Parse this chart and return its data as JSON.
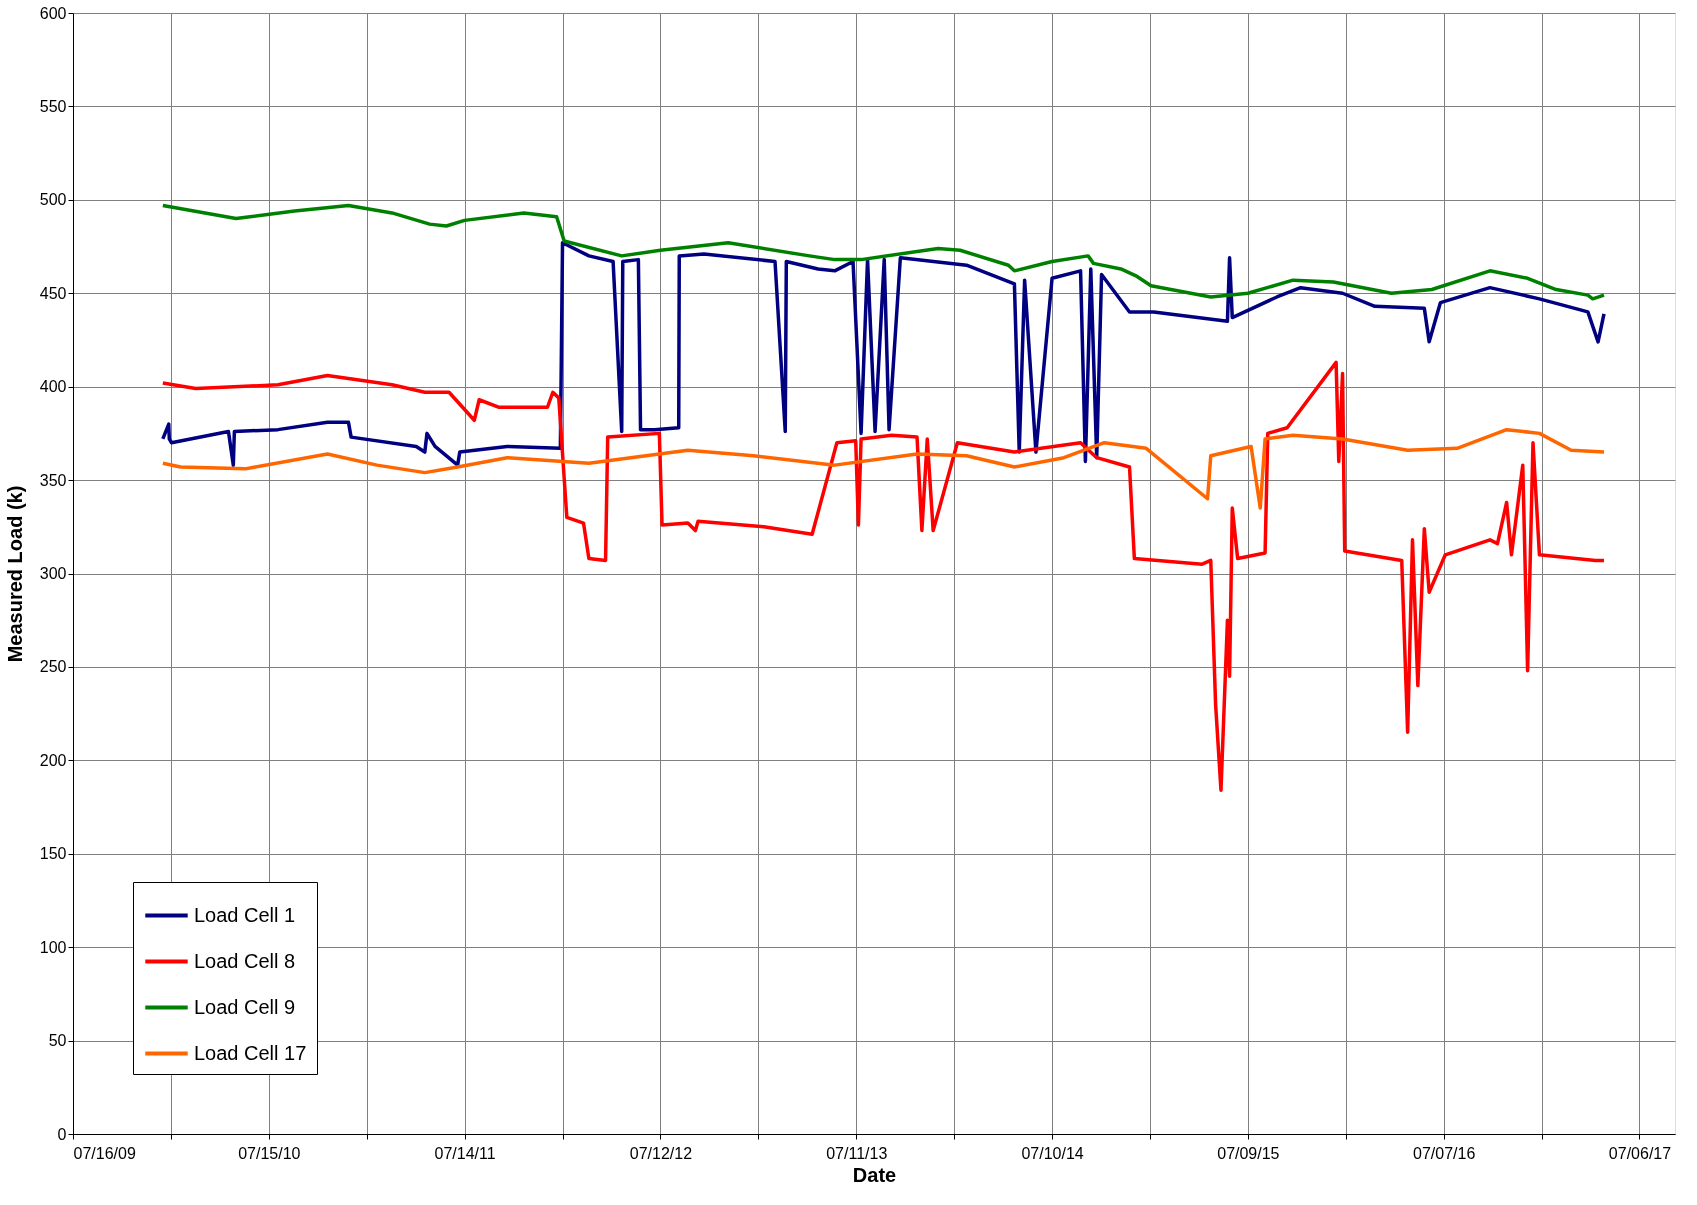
{
  "chart_data": {
    "type": "line",
    "xlabel": "Date",
    "ylabel": "Measured Load (k)",
    "ylim": [
      0,
      600
    ],
    "yticks": [
      0,
      50,
      100,
      150,
      200,
      250,
      300,
      350,
      400,
      450,
      500,
      550,
      600
    ],
    "xlim": [
      "2009-07-16",
      "2017-09-10"
    ],
    "xticks": [
      {
        "value": "2009-07-16",
        "label": "07/16/09"
      },
      {
        "value": "2010-01-14",
        "label": null
      },
      {
        "value": "2010-07-15",
        "label": "07/15/10"
      },
      {
        "value": "2011-01-13",
        "label": null
      },
      {
        "value": "2011-07-14",
        "label": "07/14/11"
      },
      {
        "value": "2012-01-12",
        "label": null
      },
      {
        "value": "2012-07-12",
        "label": "07/12/12"
      },
      {
        "value": "2013-01-10",
        "label": null
      },
      {
        "value": "2013-07-11",
        "label": "07/11/13"
      },
      {
        "value": "2014-01-09",
        "label": null
      },
      {
        "value": "2014-07-10",
        "label": "07/10/14"
      },
      {
        "value": "2015-01-08",
        "label": null
      },
      {
        "value": "2015-07-09",
        "label": "07/09/15"
      },
      {
        "value": "2016-01-07",
        "label": null
      },
      {
        "value": "2016-07-07",
        "label": "07/07/16"
      },
      {
        "value": "2017-01-05",
        "label": null
      },
      {
        "value": "2017-07-06",
        "label": "07/06/17"
      }
    ],
    "grid": true,
    "legend": "bottom left",
    "marker": "none",
    "line_style": "solid",
    "series": [
      {
        "name": "Load Cell 1",
        "color": "#000080",
        "x": [
          "2009-12-30",
          "2010-01-10",
          "2010-01-11",
          "2010-01-15",
          "2010-05-01",
          "2010-05-10",
          "2010-05-12",
          "2010-08-01",
          "2010-11-01",
          "2010-12-10",
          "2010-12-15",
          "2011-04-15",
          "2011-05-01",
          "2011-05-05",
          "2011-05-20",
          "2011-07-01",
          "2011-07-05",
          "2011-10-01",
          "2012-01-08",
          "2012-01-12",
          "2012-03-01",
          "2012-04-15",
          "2012-05-01",
          "2012-05-03",
          "2012-06-01",
          "2012-06-05",
          "2012-07-01",
          "2012-08-15",
          "2012-08-16",
          "2012-10-01",
          "2013-02-10",
          "2013-03-01",
          "2013-03-03",
          "2013-05-01",
          "2013-06-01",
          "2013-07-05",
          "2013-07-20",
          "2013-08-01",
          "2013-08-15",
          "2013-09-01",
          "2013-09-10",
          "2013-10-01",
          "2014-02-01",
          "2014-05-01",
          "2014-05-10",
          "2014-05-20",
          "2014-06-10",
          "2014-07-10",
          "2014-09-01",
          "2014-09-10",
          "2014-09-20",
          "2014-10-01",
          "2014-10-10",
          "2014-12-01",
          "2015-01-15",
          "2015-06-01",
          "2015-06-05",
          "2015-06-10",
          "2015-09-01",
          "2015-10-15",
          "2016-01-01",
          "2016-03-01",
          "2016-06-01",
          "2016-06-10",
          "2016-07-01",
          "2016-10-01",
          "2017-01-01",
          "2017-04-01",
          "2017-04-20",
          "2017-05-01"
        ],
        "values": [
          372,
          380,
          372,
          370,
          376,
          358,
          376,
          377,
          381,
          381,
          373,
          368,
          365,
          375,
          368,
          358,
          365,
          368,
          367,
          477,
          470,
          467,
          376,
          467,
          468,
          377,
          377,
          378,
          470,
          471,
          467,
          376,
          467,
          463,
          462,
          467,
          375,
          468,
          376,
          468,
          377,
          469,
          465,
          455,
          365,
          457,
          365,
          458,
          462,
          360,
          463,
          362,
          460,
          440,
          440,
          435,
          469,
          437,
          448,
          453,
          450,
          443,
          442,
          424,
          445,
          453,
          447,
          440,
          424,
          439
        ]
      },
      {
        "name": "Load Cell 8",
        "color": "#ff0000",
        "x": [
          "2009-12-30",
          "2010-03-01",
          "2010-08-01",
          "2010-11-01",
          "2011-03-01",
          "2011-05-01",
          "2011-06-15",
          "2011-08-01",
          "2011-08-10",
          "2011-09-15",
          "2011-12-15",
          "2011-12-25",
          "2012-01-05",
          "2012-01-20",
          "2012-02-20",
          "2012-03-01",
          "2012-04-01",
          "2012-04-05",
          "2012-07-10",
          "2012-07-15",
          "2012-09-01",
          "2012-09-15",
          "2012-09-20",
          "2013-01-20",
          "2013-04-20",
          "2013-06-05",
          "2013-07-10",
          "2013-07-15",
          "2013-07-20",
          "2013-09-15",
          "2013-11-01",
          "2013-11-10",
          "2013-11-20",
          "2013-12-01",
          "2014-01-15",
          "2014-05-01",
          "2014-09-01",
          "2014-10-01",
          "2014-12-01",
          "2014-12-10",
          "2015-04-15",
          "2015-05-01",
          "2015-05-10",
          "2015-05-20",
          "2015-06-01",
          "2015-06-05",
          "2015-06-10",
          "2015-06-20",
          "2015-08-10",
          "2015-08-15",
          "2015-09-20",
          "2015-12-20",
          "2015-12-25",
          "2016-01-01",
          "2016-01-05",
          "2016-04-20",
          "2016-05-01",
          "2016-05-10",
          "2016-05-20",
          "2016-06-01",
          "2016-06-10",
          "2016-07-10",
          "2016-10-01",
          "2016-10-15",
          "2016-11-01",
          "2016-11-10",
          "2016-12-01",
          "2016-12-10",
          "2016-12-20",
          "2017-01-01",
          "2017-04-15",
          "2017-05-01"
        ],
        "values": [
          402,
          399,
          401,
          406,
          401,
          397,
          397,
          382,
          393,
          389,
          389,
          397,
          394,
          330,
          327,
          308,
          307,
          373,
          375,
          326,
          327,
          323,
          328,
          325,
          321,
          370,
          371,
          326,
          372,
          374,
          373,
          323,
          372,
          323,
          370,
          365,
          370,
          362,
          357,
          308,
          305,
          307,
          230,
          184,
          275,
          245,
          335,
          308,
          311,
          375,
          378,
          413,
          360,
          407,
          312,
          307,
          215,
          318,
          240,
          324,
          290,
          310,
          318,
          316,
          338,
          310,
          358,
          248,
          370,
          310,
          307,
          307
        ]
      },
      {
        "name": "Load Cell 9",
        "color": "#008000",
        "x": [
          "2009-12-30",
          "2010-05-15",
          "2010-09-01",
          "2010-12-10",
          "2011-03-01",
          "2011-05-10",
          "2011-06-10",
          "2011-07-14",
          "2011-11-01",
          "2012-01-01",
          "2012-01-15",
          "2012-05-01",
          "2012-07-12",
          "2012-11-15",
          "2013-04-15",
          "2013-06-01",
          "2013-07-20",
          "2013-12-10",
          "2014-01-20",
          "2014-04-20",
          "2014-05-01",
          "2014-07-10",
          "2014-09-15",
          "2014-09-25",
          "2014-11-15",
          "2014-12-15",
          "2015-01-10",
          "2015-05-01",
          "2015-07-09",
          "2015-10-01",
          "2015-12-15",
          "2016-04-01",
          "2016-06-15",
          "2016-10-01",
          "2016-12-10",
          "2017-02-01",
          "2017-04-01",
          "2017-04-10",
          "2017-05-01"
        ],
        "values": [
          497,
          490,
          494,
          497,
          493,
          487,
          486,
          489,
          493,
          491,
          478,
          470,
          473,
          477,
          470,
          468,
          468,
          474,
          473,
          465,
          462,
          467,
          470,
          466,
          463,
          459,
          454,
          448,
          450,
          457,
          456,
          450,
          452,
          462,
          458,
          452,
          449,
          447,
          449
        ]
      },
      {
        "name": "Load Cell 17",
        "color": "#ff6600",
        "x": [
          "2009-12-30",
          "2010-02-01",
          "2010-06-01",
          "2010-11-01",
          "2011-02-01",
          "2011-05-01",
          "2011-07-01",
          "2011-10-01",
          "2012-03-01",
          "2012-09-01",
          "2013-01-01",
          "2013-06-01",
          "2013-11-01",
          "2014-02-01",
          "2014-05-01",
          "2014-08-01",
          "2014-10-15",
          "2015-01-01",
          "2015-04-25",
          "2015-05-01",
          "2015-07-15",
          "2015-08-01",
          "2015-08-10",
          "2015-10-01",
          "2016-01-01",
          "2016-05-01",
          "2016-08-01",
          "2016-11-01",
          "2017-01-01",
          "2017-03-01",
          "2017-05-01"
        ],
        "values": [
          359,
          357,
          356,
          364,
          358,
          354,
          357,
          362,
          359,
          366,
          363,
          358,
          364,
          363,
          357,
          362,
          370,
          367,
          340,
          363,
          368,
          335,
          372,
          374,
          372,
          366,
          367,
          377,
          375,
          366,
          365
        ]
      }
    ]
  }
}
